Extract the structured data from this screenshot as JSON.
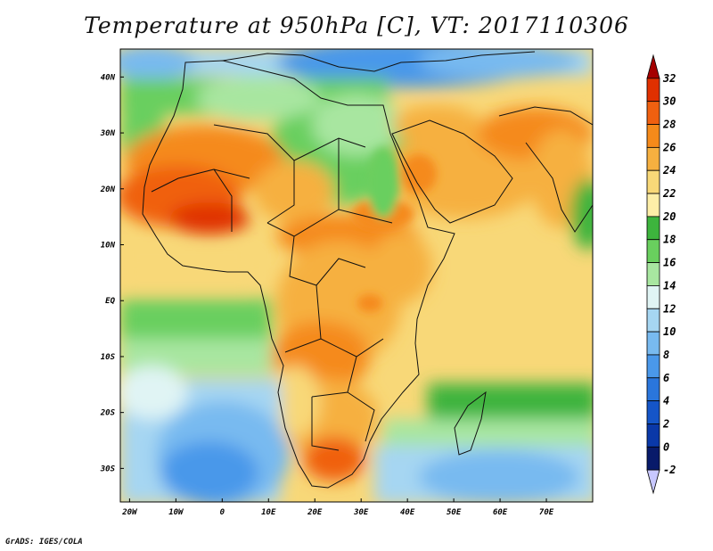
{
  "title": "Temperature at 950hPa [C], VT: 2017110306",
  "footer": "GrADS: IGES/COLA",
  "map": {
    "lat_labels": [
      "40N",
      "30N",
      "20N",
      "10N",
      "EQ",
      "10S",
      "20S",
      "30S"
    ],
    "lon_labels": [
      "20W",
      "10W",
      "0",
      "10E",
      "20E",
      "30E",
      "40E",
      "50E",
      "60E",
      "70E"
    ],
    "lon_range": [
      -22,
      80
    ],
    "lat_range": [
      -36,
      45
    ]
  },
  "colorbar": {
    "levels": [
      "32",
      "30",
      "28",
      "26",
      "24",
      "22",
      "20",
      "18",
      "16",
      "14",
      "12",
      "10",
      "8",
      "6",
      "4",
      "2",
      "0",
      "-2"
    ],
    "colors": [
      "#a50000",
      "#e03000",
      "#f06010",
      "#f58a1a",
      "#f6b040",
      "#f8d878",
      "#fdeea8",
      "#3db43d",
      "#69cf5e",
      "#a8e6a0",
      "#e0f4f4",
      "#a6d6f2",
      "#78baf0",
      "#4a98ea",
      "#2a76dc",
      "#1555c8",
      "#0a38a8",
      "#081a6a",
      "#c8c8ff"
    ]
  }
}
